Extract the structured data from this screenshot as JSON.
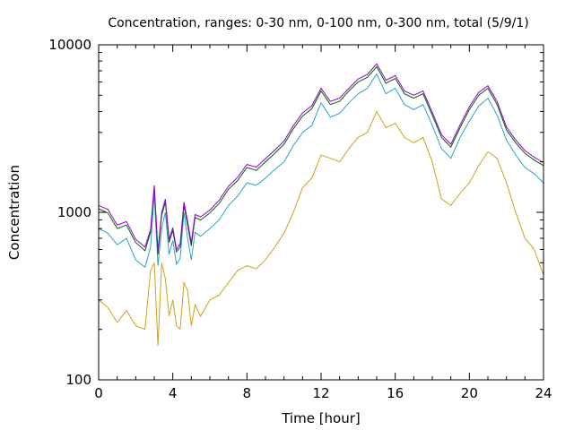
{
  "chart_data": {
    "type": "line",
    "title": "Concentration, ranges: 0-30 nm, 0-100 nm, 0-300 nm, total (5/9/1)",
    "xlabel": "Time [hour]",
    "ylabel": "Concentration",
    "xlim": [
      0,
      24
    ],
    "ylim": [
      100,
      10000
    ],
    "yscale": "log",
    "x_ticks": [
      0,
      4,
      8,
      12,
      16,
      20,
      24
    ],
    "y_ticks": [
      100,
      1000,
      10000
    ],
    "grid": false,
    "legend": "none",
    "x": [
      0,
      0.5,
      1,
      1.5,
      2,
      2.5,
      2.8,
      3,
      3.2,
      3.4,
      3.6,
      3.8,
      4,
      4.2,
      4.4,
      4.6,
      4.8,
      5,
      5.2,
      5.5,
      6,
      6.5,
      7,
      7.5,
      8,
      8.5,
      9,
      9.5,
      10,
      10.5,
      11,
      11.5,
      12,
      12.5,
      13,
      13.5,
      14,
      14.5,
      15,
      15.5,
      16,
      16.5,
      17,
      17.5,
      18,
      18.5,
      19,
      19.5,
      20,
      20.5,
      21,
      21.5,
      22,
      22.5,
      23,
      23.5,
      24
    ],
    "series": [
      {
        "color": "#d4a017",
        "values": [
          300,
          270,
          220,
          260,
          210,
          200,
          450,
          500,
          160,
          500,
          400,
          240,
          300,
          210,
          200,
          380,
          340,
          210,
          280,
          240,
          300,
          320,
          380,
          450,
          480,
          460,
          520,
          620,
          750,
          1000,
          1400,
          1600,
          2200,
          2100,
          2000,
          2400,
          2800,
          3000,
          4000,
          3200,
          3400,
          2800,
          2600,
          2800,
          2000,
          1200,
          1100,
          1300,
          1500,
          1900,
          2300,
          2100,
          1500,
          1000,
          700,
          600,
          420
        ]
      },
      {
        "color": "#2aa4c6",
        "values": [
          800,
          750,
          640,
          700,
          520,
          470,
          620,
          1300,
          480,
          800,
          1000,
          560,
          680,
          490,
          530,
          1000,
          700,
          520,
          760,
          720,
          800,
          900,
          1100,
          1250,
          1500,
          1450,
          1600,
          1800,
          2000,
          2500,
          3000,
          3300,
          4500,
          3700,
          3900,
          4500,
          5100,
          5500,
          6700,
          5100,
          5500,
          4400,
          4100,
          4400,
          3300,
          2400,
          2100,
          2800,
          3500,
          4300,
          4800,
          3800,
          2700,
          2200,
          1850,
          1700,
          1500
        ]
      },
      {
        "color": "#006400",
        "values": [
          1050,
          990,
          800,
          840,
          660,
          590,
          760,
          1400,
          560,
          960,
          1150,
          660,
          780,
          580,
          620,
          1100,
          840,
          630,
          930,
          900,
          990,
          1130,
          1370,
          1550,
          1850,
          1780,
          2000,
          2250,
          2550,
          3150,
          3750,
          4150,
          5300,
          4400,
          4600,
          5300,
          6000,
          6400,
          7400,
          5900,
          6300,
          5100,
          4800,
          5100,
          3800,
          2800,
          2450,
          3200,
          4100,
          5000,
          5500,
          4400,
          3100,
          2600,
          2250,
          2050,
          1900
        ]
      },
      {
        "color": "#9400d3",
        "values": [
          1100,
          1040,
          840,
          880,
          690,
          620,
          790,
          1450,
          590,
          1000,
          1200,
          690,
          810,
          600,
          650,
          1150,
          880,
          660,
          970,
          940,
          1030,
          1180,
          1430,
          1620,
          1930,
          1860,
          2090,
          2350,
          2660,
          3290,
          3920,
          4330,
          5500,
          4590,
          4800,
          5500,
          6250,
          6650,
          7700,
          6150,
          6550,
          5300,
          5000,
          5300,
          3950,
          2900,
          2550,
          3330,
          4270,
          5200,
          5700,
          4580,
          3230,
          2700,
          2340,
          2130,
          1980
        ]
      }
    ]
  }
}
